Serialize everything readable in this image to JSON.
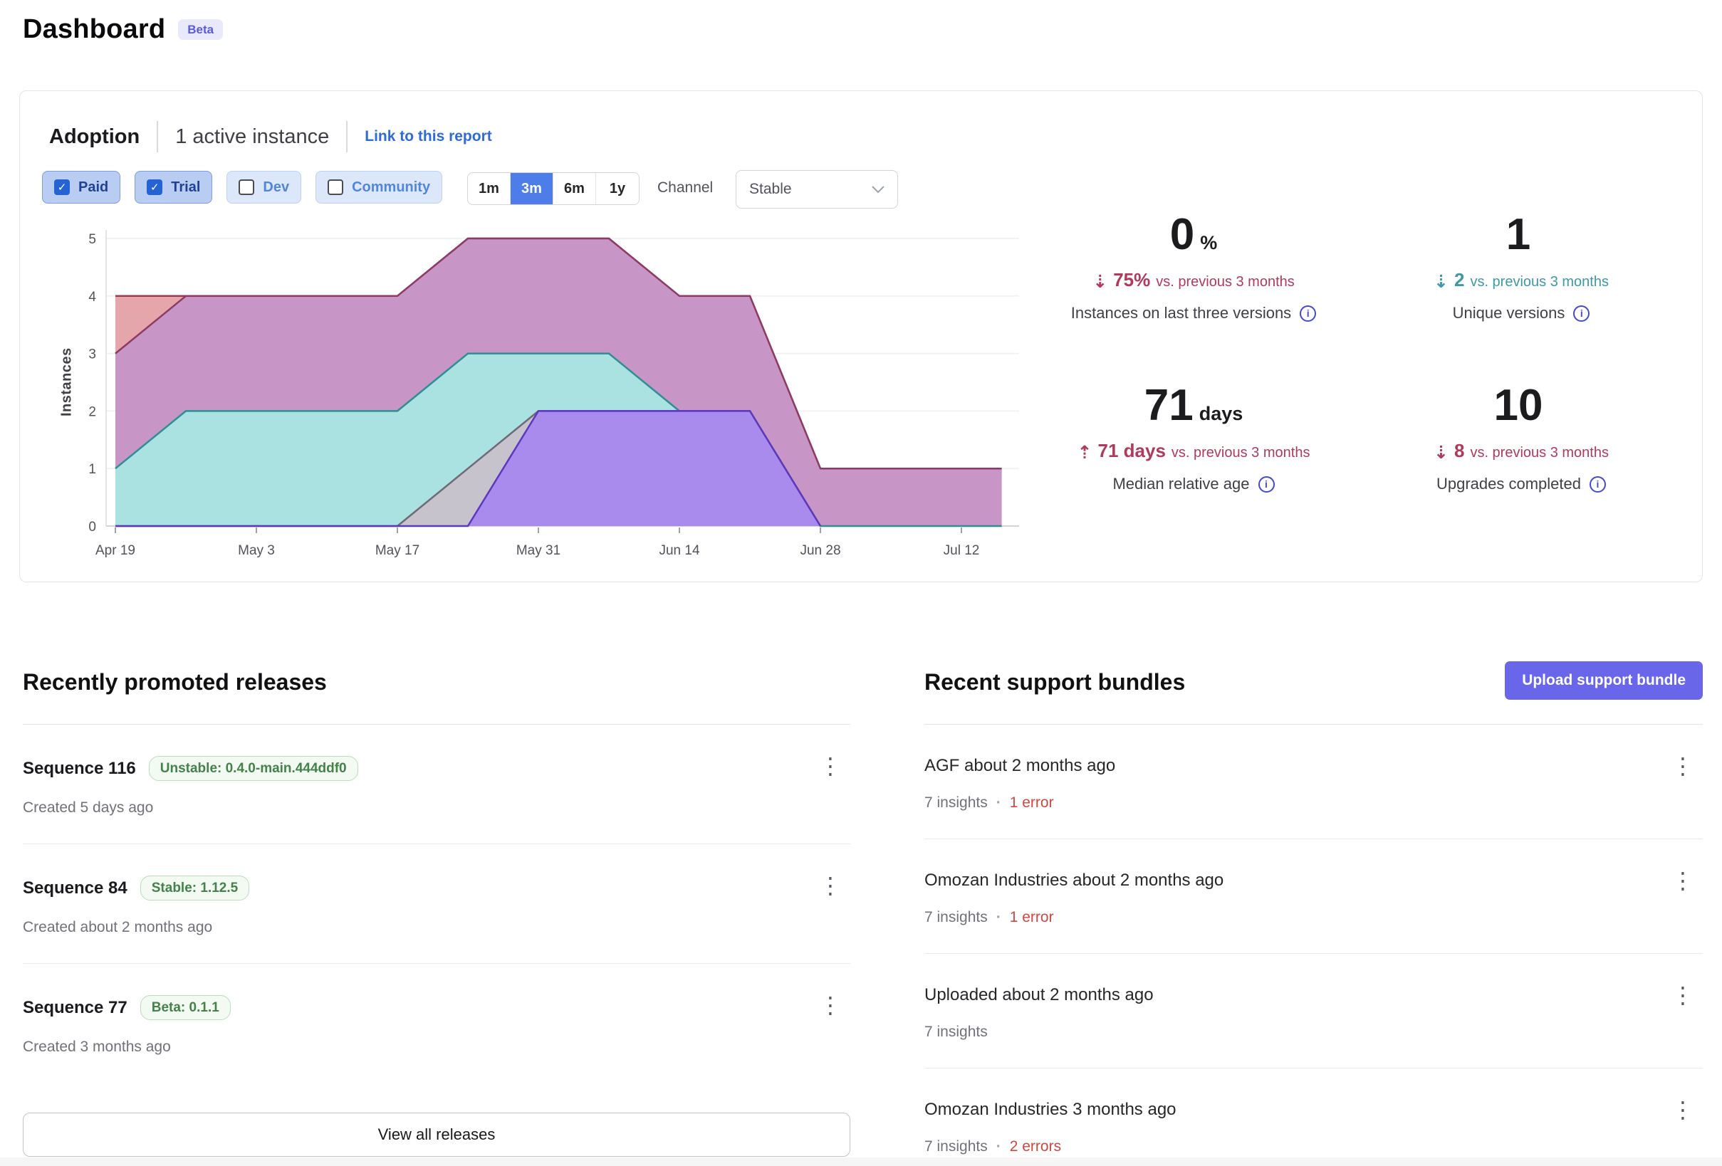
{
  "page": {
    "title": "Dashboard",
    "beta_badge": "Beta"
  },
  "adoption": {
    "title": "Adoption",
    "active_instances": "1 active instance",
    "link_label": "Link to this report",
    "filters": [
      {
        "label": "Paid",
        "checked": true
      },
      {
        "label": "Trial",
        "checked": true
      },
      {
        "label": "Dev",
        "checked": false
      },
      {
        "label": "Community",
        "checked": false
      }
    ],
    "ranges": [
      {
        "label": "1m",
        "selected": false
      },
      {
        "label": "3m",
        "selected": true
      },
      {
        "label": "6m",
        "selected": false
      },
      {
        "label": "1y",
        "selected": false
      }
    ],
    "channel": {
      "label": "Channel",
      "value": "Stable"
    },
    "stats": [
      {
        "value": "0",
        "unit": "%",
        "direction": "down",
        "delta": "75%",
        "note": "vs. previous 3 months",
        "tone": "rose",
        "label": "Instances on last three versions"
      },
      {
        "value": "1",
        "unit": "",
        "direction": "down",
        "delta": "2",
        "note": "vs. previous 3 months",
        "tone": "teal",
        "label": "Unique versions"
      },
      {
        "value": "71",
        "unit": "days",
        "direction": "up",
        "delta": "71 days",
        "note": "vs. previous 3 months",
        "tone": "rose",
        "label": "Median relative age"
      },
      {
        "value": "10",
        "unit": "",
        "direction": "down",
        "delta": "8",
        "note": "vs. previous 3 months",
        "tone": "rose",
        "label": "Upgrades completed"
      }
    ]
  },
  "chart_data": {
    "type": "area",
    "title": "Adoption instances by version",
    "ylabel": "Instances",
    "ylim": [
      0,
      5
    ],
    "yticks": [
      0,
      1,
      2,
      3,
      4,
      5
    ],
    "grid": "horizontal",
    "x_tick_labels": [
      "Apr 19",
      "May 3",
      "May 17",
      "May 31",
      "Jun 14",
      "Jun 28",
      "Jul 12"
    ],
    "x_tick_days": [
      0,
      14,
      28,
      42,
      56,
      70,
      84
    ],
    "x_days": [
      0,
      7,
      14,
      21,
      28,
      35,
      42,
      49,
      56,
      63,
      70,
      77,
      84,
      88
    ],
    "series": [
      {
        "name": "red",
        "stroke": "#9c3a55",
        "fill": "#e4a6aa",
        "values": [
          4,
          4,
          4,
          4,
          4,
          5,
          5,
          5,
          4,
          4,
          1,
          1,
          1,
          1
        ]
      },
      {
        "name": "pink",
        "stroke": "#8e3a62",
        "fill": "#c795c6",
        "values": [
          3,
          4,
          4,
          4,
          4,
          5,
          5,
          5,
          4,
          4,
          1,
          1,
          1,
          1
        ]
      },
      {
        "name": "teal",
        "stroke": "#2f8e94",
        "fill": "#a9e2e1",
        "values": [
          1,
          2,
          2,
          2,
          2,
          3,
          3,
          3,
          2,
          2,
          0,
          0,
          0,
          0
        ]
      },
      {
        "name": "gray",
        "stroke": "#6e6a79",
        "fill": "#c7c3cc",
        "values": [
          0,
          0,
          0,
          0,
          0,
          1,
          2,
          2,
          2,
          2,
          0,
          null,
          null,
          null
        ]
      },
      {
        "name": "purple",
        "stroke": "#5b38bd",
        "fill": "#a98bee",
        "values": [
          0,
          0,
          0,
          0,
          0,
          0,
          2,
          2,
          2,
          2,
          0,
          null,
          null,
          null
        ]
      }
    ]
  },
  "releases": {
    "heading": "Recently promoted releases",
    "view_all_label": "View all releases",
    "items": [
      {
        "title": "Sequence 116",
        "badge": "Unstable: 0.4.0-main.444ddf0",
        "created": "Created 5 days ago"
      },
      {
        "title": "Sequence 84",
        "badge": "Stable: 1.12.5",
        "created": "Created about 2 months ago"
      },
      {
        "title": "Sequence 77",
        "badge": "Beta: 0.1.1",
        "created": "Created 3 months ago"
      }
    ]
  },
  "bundles": {
    "heading": "Recent support bundles",
    "upload_label": "Upload support bundle",
    "items": [
      {
        "title": "AGF about 2 months ago",
        "insights": "7 insights",
        "errors": "1 error"
      },
      {
        "title": "Omozan Industries about 2 months ago",
        "insights": "7 insights",
        "errors": "1 error"
      },
      {
        "title": "Uploaded about 2 months ago",
        "insights": "7 insights",
        "errors": ""
      },
      {
        "title": "Omozan Industries 3 months ago",
        "insights": "7 insights",
        "errors": "2 errors"
      }
    ]
  }
}
